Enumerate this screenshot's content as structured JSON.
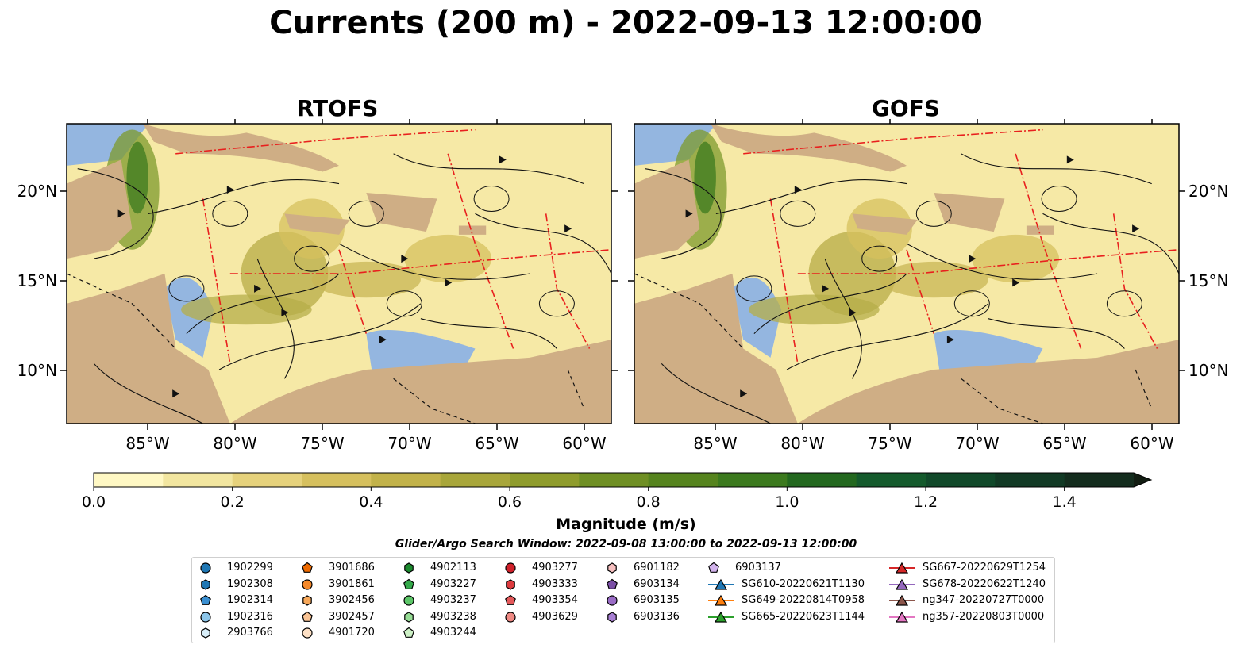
{
  "title": "Currents (200 m) - 2022-09-13 12:00:00",
  "panels": [
    {
      "title": "RTOFS"
    },
    {
      "title": "GOFS"
    }
  ],
  "axes": {
    "x_ticks": [
      "85°W",
      "80°W",
      "75°W",
      "70°W",
      "65°W",
      "60°W"
    ],
    "y_ticks": [
      "20°N",
      "15°N",
      "10°N"
    ]
  },
  "colorbar": {
    "label": "Magnitude (m/s)",
    "ticks": [
      "0.0",
      "0.2",
      "0.4",
      "0.6",
      "0.8",
      "1.0",
      "1.2",
      "1.4"
    ],
    "range": [
      0.0,
      1.5
    ],
    "extend": "max",
    "colors": [
      "#fff8c4",
      "#f2e6a0",
      "#e6d27c",
      "#d6c05e",
      "#c2b24a",
      "#a8a63a",
      "#8f9c2c",
      "#6f8f24",
      "#56841e",
      "#3c7a1e",
      "#23681f",
      "#145a2c",
      "#11492a",
      "#123a25",
      "#142d1e"
    ]
  },
  "search_window": "Glider/Argo Search Window: 2022-09-08 13:00:00 to 2022-09-13 12:00:00",
  "legend": [
    [
      {
        "label": "1902299",
        "marker": "circle",
        "color": "#1f77b4"
      },
      {
        "label": "1902308",
        "marker": "hexagon",
        "color": "#1f77b4"
      },
      {
        "label": "1902314",
        "marker": "pentagon",
        "color": "#3a8fd1"
      },
      {
        "label": "1902316",
        "marker": "circle",
        "color": "#8cc6ea"
      },
      {
        "label": "2903766",
        "marker": "hexagon",
        "color": "#d8eef9"
      }
    ],
    [
      {
        "label": "3901686",
        "marker": "pentagon",
        "color": "#ee6a00"
      },
      {
        "label": "3901861",
        "marker": "circle",
        "color": "#f5892a"
      },
      {
        "label": "3902456",
        "marker": "hexagon",
        "color": "#f7a85a"
      },
      {
        "label": "3902457",
        "marker": "pentagon",
        "color": "#f9c394"
      },
      {
        "label": "4901720",
        "marker": "circle",
        "color": "#fde0c5"
      }
    ],
    [
      {
        "label": "4902113",
        "marker": "hexagon",
        "color": "#1b8a2e"
      },
      {
        "label": "4903227",
        "marker": "pentagon",
        "color": "#34a94a"
      },
      {
        "label": "4903237",
        "marker": "circle",
        "color": "#5cc668"
      },
      {
        "label": "4903238",
        "marker": "hexagon",
        "color": "#96dc95"
      },
      {
        "label": "4903244",
        "marker": "pentagon",
        "color": "#cdf1c6"
      }
    ],
    [
      {
        "label": "4903277",
        "marker": "circle",
        "color": "#d0202a"
      },
      {
        "label": "4903333",
        "marker": "hexagon",
        "color": "#dd3a3e"
      },
      {
        "label": "4903354",
        "marker": "pentagon",
        "color": "#e4585a"
      },
      {
        "label": "4903629",
        "marker": "circle",
        "color": "#f08a84"
      }
    ],
    [
      {
        "label": "6901182",
        "marker": "hexagon",
        "color": "#f7c0c0"
      },
      {
        "label": "6903134",
        "marker": "pentagon",
        "color": "#7b4fa6"
      },
      {
        "label": "6903135",
        "marker": "circle",
        "color": "#9a6cc6"
      },
      {
        "label": "6903136",
        "marker": "hexagon",
        "color": "#a87fd3"
      }
    ],
    [
      {
        "label": "6903137",
        "marker": "pentagon",
        "color": "#d2b3ec"
      },
      {
        "label": "SG610-20220621T1130",
        "marker": "triangle-line",
        "color": "#1f77b4"
      },
      {
        "label": "SG649-20220814T0958",
        "marker": "triangle-line",
        "color": "#ff7f0e"
      },
      {
        "label": "SG665-20220623T1144",
        "marker": "triangle-line",
        "color": "#2ca02c"
      }
    ],
    [
      {
        "label": "SG667-20220629T1254",
        "marker": "triangle-line",
        "color": "#d62728"
      },
      {
        "label": "SG678-20220622T1240",
        "marker": "triangle-line",
        "color": "#9467bd"
      },
      {
        "label": "ng347-20220727T0000",
        "marker": "triangle-line",
        "color": "#8c564b"
      },
      {
        "label": "ng357-20220803T0000",
        "marker": "triangle-line",
        "color": "#e377c2"
      }
    ]
  ]
}
